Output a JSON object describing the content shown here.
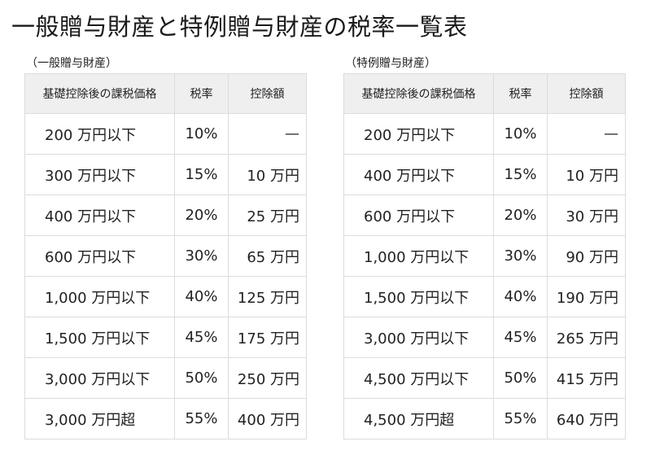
{
  "title": "一般贈与財産と特例贈与財産の税率一覧表",
  "headers": {
    "price": "基礎控除後の課税価格",
    "rate": "税率",
    "deduction": "控除額"
  },
  "general": {
    "label": "（一般贈与財産）",
    "rows": [
      {
        "price": "200 万円以下",
        "rate": "10%",
        "deduction": "—"
      },
      {
        "price": "300 万円以下",
        "rate": "15%",
        "deduction": "10 万円"
      },
      {
        "price": "400 万円以下",
        "rate": "20%",
        "deduction": "25 万円"
      },
      {
        "price": "600 万円以下",
        "rate": "30%",
        "deduction": "65 万円"
      },
      {
        "price": "1,000 万円以下",
        "rate": "40%",
        "deduction": "125 万円"
      },
      {
        "price": "1,500 万円以下",
        "rate": "45%",
        "deduction": "175 万円"
      },
      {
        "price": "3,000 万円以下",
        "rate": "50%",
        "deduction": "250 万円"
      },
      {
        "price": "3,000 万円超",
        "rate": "55%",
        "deduction": "400 万円"
      }
    ]
  },
  "special": {
    "label": "（特例贈与財産）",
    "rows": [
      {
        "price": "200 万円以下",
        "rate": "10%",
        "deduction": "—"
      },
      {
        "price": "400 万円以下",
        "rate": "15%",
        "deduction": "10 万円"
      },
      {
        "price": "600 万円以下",
        "rate": "20%",
        "deduction": "30 万円"
      },
      {
        "price": "1,000 万円以下",
        "rate": "30%",
        "deduction": "90 万円"
      },
      {
        "price": "1,500 万円以下",
        "rate": "40%",
        "deduction": "190 万円"
      },
      {
        "price": "3,000 万円以下",
        "rate": "45%",
        "deduction": "265 万円"
      },
      {
        "price": "4,500 万円以下",
        "rate": "50%",
        "deduction": "415 万円"
      },
      {
        "price": "4,500 万円超",
        "rate": "55%",
        "deduction": "640 万円"
      }
    ]
  }
}
